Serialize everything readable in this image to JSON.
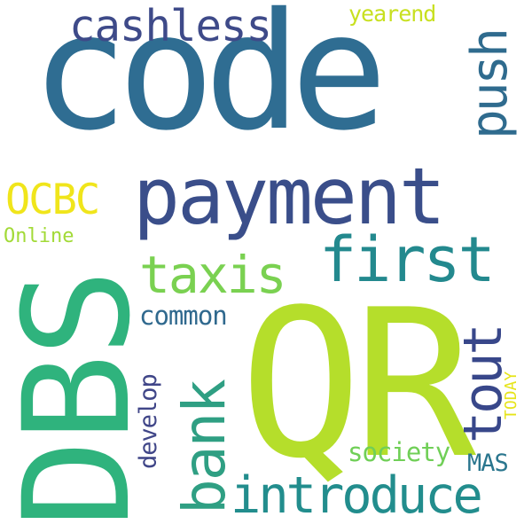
{
  "words": [
    {
      "text": "code",
      "color": "#2f6d92"
    },
    {
      "text": "QR",
      "color": "#b5de2b"
    },
    {
      "text": "DBS",
      "color": "#2fb37d"
    },
    {
      "text": "payment",
      "color": "#3a4e8a"
    },
    {
      "text": "first",
      "color": "#23898e"
    },
    {
      "text": "cashless",
      "color": "#3e4a89"
    },
    {
      "text": "push",
      "color": "#2f6b8e"
    },
    {
      "text": "introduce",
      "color": "#228d8d"
    },
    {
      "text": "bank",
      "color": "#2f9f83"
    },
    {
      "text": "tout",
      "color": "#38478a"
    },
    {
      "text": "taxis",
      "color": "#7ad151"
    },
    {
      "text": "OCBC",
      "color": "#f0e51b"
    },
    {
      "text": "common",
      "color": "#30698e"
    },
    {
      "text": "develop",
      "color": "#404688"
    },
    {
      "text": "society",
      "color": "#70cf57"
    },
    {
      "text": "MAS",
      "color": "#2a768e"
    },
    {
      "text": "TODAY",
      "color": "#e6e419"
    },
    {
      "text": "yearend",
      "color": "#c8e020"
    },
    {
      "text": "Online",
      "color": "#a2da37"
    }
  ]
}
